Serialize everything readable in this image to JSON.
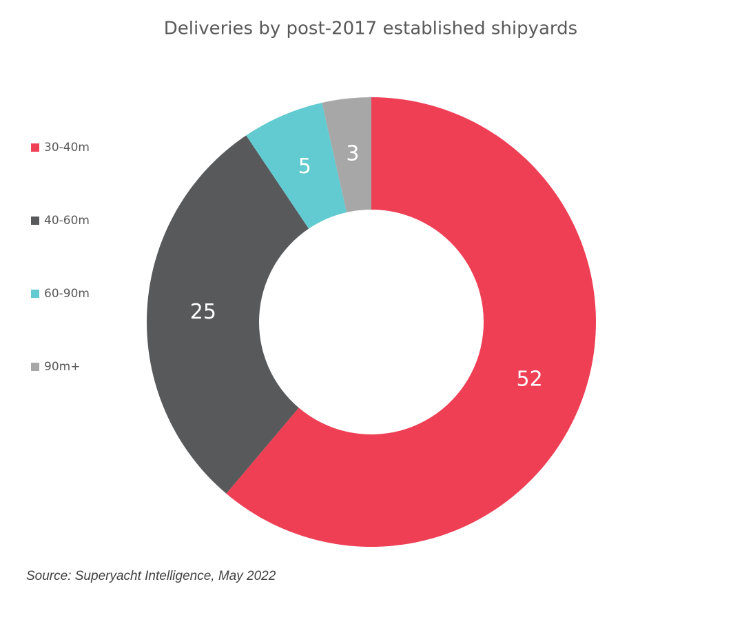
{
  "chart_data": {
    "type": "donut",
    "title": "Deliveries by post-2017 established shipyards",
    "categories": [
      "30-40m",
      "40-60m",
      "60-90m",
      "90m+"
    ],
    "values": [
      52,
      25,
      5,
      3
    ],
    "colors": [
      "#ef3f55",
      "#58595b",
      "#62cbd1",
      "#a7a7a7"
    ],
    "legend": "left",
    "source": "Source: Superyacht Intelligence, May 2022"
  }
}
